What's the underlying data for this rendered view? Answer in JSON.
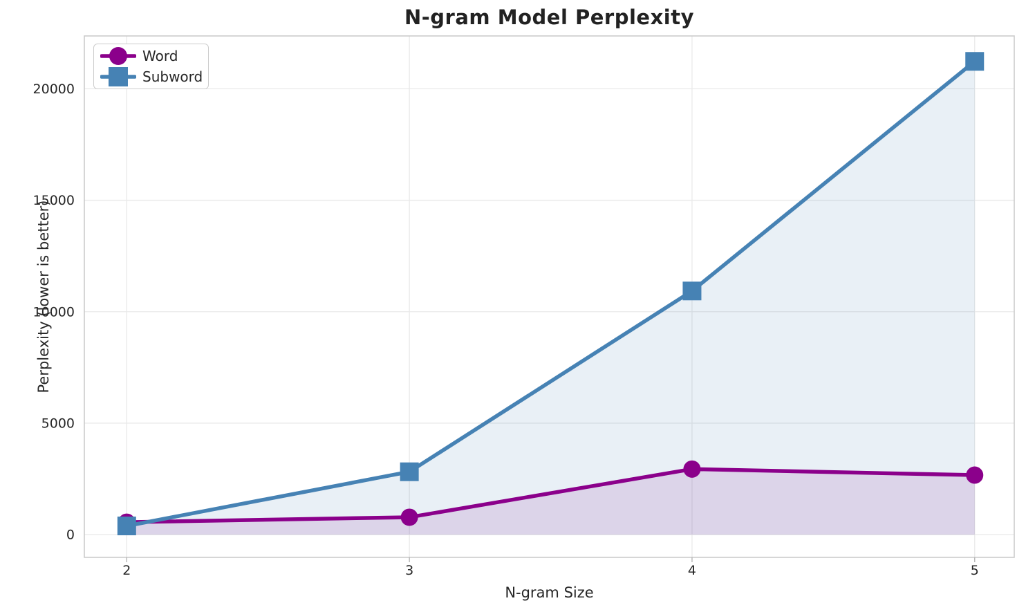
{
  "chart_data": {
    "type": "line",
    "title": "N-gram Model Perplexity",
    "xlabel": "N-gram Size",
    "ylabel": "Perplexity (lower is better)",
    "x": [
      2,
      3,
      4,
      5
    ],
    "xticks": [
      "2",
      "3",
      "4",
      "5"
    ],
    "yticks": [
      0,
      5000,
      10000,
      15000,
      20000
    ],
    "xlim": [
      1.85,
      5.14
    ],
    "ylim": [
      -1020,
      22370
    ],
    "grid": true,
    "legend_position": "upper-left",
    "series": [
      {
        "name": "Word",
        "marker": "circle",
        "color": "#8B008B",
        "fill": "rgba(139,0,139,0.12)",
        "values": [
          560,
          780,
          2940,
          2670
        ]
      },
      {
        "name": "Subword",
        "marker": "square",
        "color": "#4682B4",
        "fill": "rgba(70,130,180,0.12)",
        "values": [
          390,
          2820,
          10930,
          21230
        ]
      }
    ],
    "colors": {
      "text": "#262626",
      "grid": "#e9e9e9",
      "spine": "#cbcbcb",
      "tick": "#b5b5b5",
      "background": "#ffffff"
    }
  }
}
